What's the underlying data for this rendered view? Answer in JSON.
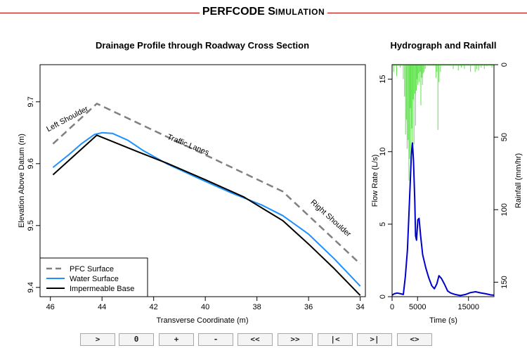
{
  "header": {
    "title_main": "PERFCODE",
    "title_sub_initial": "S",
    "title_sub_rest": "IMULATION"
  },
  "controls": [
    {
      "name": "step-forward-button",
      "label": ">"
    },
    {
      "name": "reset-zero-button",
      "label": "0"
    },
    {
      "name": "increase-button",
      "label": "+"
    },
    {
      "name": "decrease-button",
      "label": "-"
    },
    {
      "name": "fast-rewind-button",
      "label": "<<"
    },
    {
      "name": "fast-forward-button",
      "label": ">>"
    },
    {
      "name": "jump-start-button",
      "label": "|<"
    },
    {
      "name": "jump-end-button",
      "label": ">|"
    },
    {
      "name": "toggle-direction-button",
      "label": "<>"
    }
  ],
  "chart_data": [
    {
      "type": "line",
      "title": "Drainage Profile through Roadway Cross Section",
      "xlabel": "Transverse Coordinate (m)",
      "ylabel": "Elevation Above Datum (m)",
      "xlim": [
        46.4,
        33.8
      ],
      "ylim": [
        9.385,
        9.76
      ],
      "xticks": [
        46,
        44,
        42,
        40,
        38,
        36,
        34
      ],
      "yticks": [
        9.4,
        9.5,
        9.6,
        9.7
      ],
      "legend_position": "bottom-left",
      "annotations": [
        {
          "text": "Left Shoulder",
          "x": 45.3,
          "y": 9.669,
          "angle": -28
        },
        {
          "text": "Traffic Lanes",
          "x": 40.7,
          "y": 9.627,
          "angle": 22
        },
        {
          "text": "Right Shoulder",
          "x": 35.2,
          "y": 9.509,
          "angle": 42
        }
      ],
      "series": [
        {
          "name": "PFC Surface",
          "color": "#808080",
          "dash": "10,6",
          "width": 2.5,
          "x": [
            45.9,
            44.2,
            37.0,
            34.0
          ],
          "y": [
            9.632,
            9.697,
            9.555,
            9.438
          ]
        },
        {
          "name": "Water Surface",
          "color": "#1e90ff",
          "dash": "",
          "width": 2,
          "x": [
            45.9,
            45.3,
            44.8,
            44.3,
            44.0,
            43.6,
            43.0,
            42.4,
            41.5,
            40.3,
            39.0,
            37.8,
            37.0,
            36.0,
            35.0,
            34.0
          ],
          "y": [
            9.594,
            9.614,
            9.632,
            9.647,
            9.65,
            9.649,
            9.638,
            9.621,
            9.6,
            9.577,
            9.553,
            9.533,
            9.516,
            9.486,
            9.446,
            9.402
          ]
        },
        {
          "name": "Impermeable Base",
          "color": "#000000",
          "dash": "",
          "width": 2,
          "x": [
            45.9,
            44.2,
            42.6,
            41.5,
            40.0,
            38.5,
            37.0,
            36.0,
            35.0,
            34.0
          ],
          "y": [
            9.582,
            9.646,
            9.619,
            9.601,
            9.574,
            9.546,
            9.508,
            9.47,
            9.43,
            9.387
          ]
        }
      ]
    },
    {
      "type": "line",
      "title": "Hydrograph and Rainfall",
      "xlabel": "Time (s)",
      "ylabel": "Flow Rate (L/s)",
      "y2label": "Rainfall (mm/hr)",
      "xlim": [
        0,
        20000
      ],
      "ylim": [
        0,
        16
      ],
      "y2lim_inverted": [
        0,
        160
      ],
      "xticks": [
        0,
        5000,
        15000
      ],
      "yticks": [
        0,
        5,
        10,
        15
      ],
      "y2ticks": [
        0,
        50,
        100,
        150
      ],
      "flow": {
        "name": "Flow Rate",
        "color": "#0000cd",
        "x": [
          0,
          400,
          1000,
          1700,
          2200,
          2600,
          3000,
          3300,
          3600,
          3800,
          4000,
          4200,
          4450,
          4600,
          4800,
          5050,
          5300,
          5600,
          6000,
          6600,
          7200,
          7800,
          8300,
          8800,
          9200,
          9700,
          10300,
          10900,
          11500,
          12400,
          13400,
          14400,
          15400,
          16400,
          17400,
          18400,
          19400,
          20000
        ],
        "y": [
          0.1,
          0.2,
          0.25,
          0.2,
          0.15,
          1.4,
          3.2,
          5.6,
          8.2,
          9.9,
          10.6,
          9.3,
          6.6,
          4.2,
          3.9,
          5.3,
          5.4,
          4.2,
          2.9,
          2.0,
          1.3,
          0.75,
          0.55,
          0.9,
          1.45,
          1.25,
          0.85,
          0.4,
          0.25,
          0.15,
          0.08,
          0.15,
          0.28,
          0.34,
          0.26,
          0.2,
          0.12,
          0.1
        ]
      },
      "rainfall": {
        "name": "Rainfall",
        "color": "#5de34a",
        "x": [
          300,
          900,
          1600,
          2200,
          2450,
          2650,
          2800,
          2950,
          3150,
          3300,
          3450,
          3600,
          3700,
          3850,
          4000,
          4150,
          4300,
          4450,
          4600,
          4750,
          4900,
          5050,
          5200,
          5350,
          5500,
          5650,
          5800,
          5950,
          6100,
          6300,
          6500,
          8600,
          8800,
          9000,
          9200,
          9500,
          12000,
          13000,
          13600,
          14200,
          15400,
          16300,
          16600,
          17000,
          17500,
          18100,
          18600,
          19600
        ],
        "values": [
          5,
          8,
          2,
          10,
          22,
          48,
          38,
          58,
          52,
          80,
          65,
          30,
          68,
          44,
          62,
          24,
          55,
          20,
          42,
          18,
          10,
          14,
          6,
          12,
          5,
          28,
          9,
          14,
          6,
          5,
          3,
          9,
          5,
          45,
          12,
          5,
          3,
          4,
          2,
          3,
          5,
          5,
          3,
          4,
          2,
          3,
          1,
          2
        ]
      }
    }
  ]
}
